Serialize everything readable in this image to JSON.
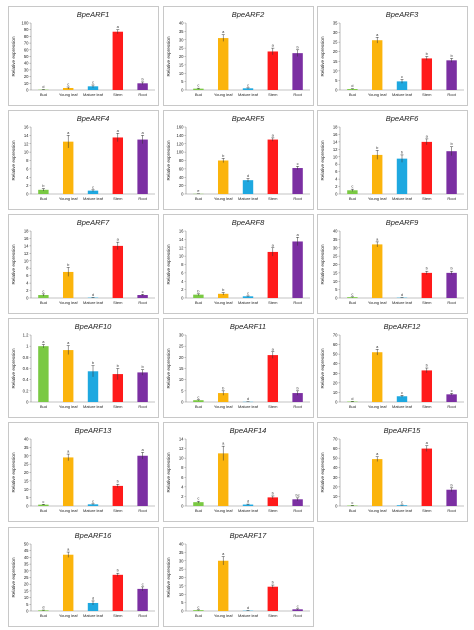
{
  "figure": {
    "categories": [
      "Bud",
      "Young leaf",
      "Mature leaf",
      "Stem",
      "Root"
    ],
    "colors": [
      "#7ac943",
      "#fbb40c",
      "#1ea8e0",
      "#ff1a1a",
      "#7b2fa2"
    ],
    "ylabel": "Relative expression"
  },
  "chart_data": [
    {
      "type": "bar",
      "title": "BpeARF1",
      "categories": [
        "Bud",
        "Young leaf",
        "Mature leaf",
        "Stem",
        "Root"
      ],
      "values": [
        0.5,
        3,
        5.5,
        87,
        10
      ],
      "errors": [
        0.3,
        1.5,
        2,
        3,
        2
      ],
      "sig": [
        "d",
        "c",
        "c",
        "a",
        "b"
      ],
      "ylabel": "Relative expression",
      "ylim": [
        0,
        100
      ],
      "yticks": [
        0,
        10,
        20,
        30,
        40,
        50,
        60,
        70,
        80,
        90,
        100
      ]
    },
    {
      "type": "bar",
      "title": "BpeARF2",
      "categories": [
        "Bud",
        "Young leaf",
        "Mature leaf",
        "Stem",
        "Root"
      ],
      "values": [
        0.8,
        31,
        1,
        23,
        22
      ],
      "errors": [
        0.3,
        2,
        0.3,
        2,
        2
      ],
      "sig": [
        "c",
        "a",
        "c",
        "a",
        "b"
      ],
      "ylabel": "Relative expression",
      "ylim": [
        0,
        40
      ],
      "yticks": [
        0,
        5,
        10,
        15,
        20,
        25,
        30,
        35,
        40
      ]
    },
    {
      "type": "bar",
      "title": "BpeARF3",
      "categories": [
        "Bud",
        "Young leaf",
        "Mature leaf",
        "Stem",
        "Root"
      ],
      "values": [
        0.5,
        26,
        4.5,
        16.5,
        15.5
      ],
      "errors": [
        0.2,
        1.5,
        1,
        1,
        1
      ],
      "sig": [
        "d",
        "a",
        "c",
        "b",
        "b"
      ],
      "ylabel": "Relative expression",
      "ylim": [
        0,
        35
      ],
      "yticks": [
        0,
        5,
        10,
        15,
        20,
        25,
        30,
        35
      ]
    },
    {
      "type": "bar",
      "title": "BpeARF4",
      "categories": [
        "Bud",
        "Young leaf",
        "Mature leaf",
        "Stem",
        "Root"
      ],
      "values": [
        1,
        12.5,
        0.8,
        13.5,
        13
      ],
      "errors": [
        0.3,
        1.5,
        0.2,
        1,
        1
      ],
      "sig": [
        "b",
        "a",
        "c",
        "a",
        "a"
      ],
      "ylabel": "Relative expression",
      "ylim": [
        0,
        16
      ],
      "yticks": [
        0,
        2,
        4,
        6,
        8,
        10,
        12,
        14,
        16
      ]
    },
    {
      "type": "bar",
      "title": "BpeARF5",
      "categories": [
        "Bud",
        "Young leaf",
        "Mature leaf",
        "Stem",
        "Root"
      ],
      "values": [
        0.5,
        80,
        33,
        130,
        62
      ],
      "errors": [
        0.2,
        5,
        4,
        4,
        4
      ],
      "sig": [
        "e",
        "b",
        "d",
        "a",
        "c"
      ],
      "ylabel": "Relative expression",
      "ylim": [
        0,
        160
      ],
      "yticks": [
        0,
        20,
        40,
        60,
        80,
        100,
        120,
        140,
        160
      ]
    },
    {
      "type": "bar",
      "title": "BpeARF6",
      "categories": [
        "Bud",
        "Young leaf",
        "Mature leaf",
        "Stem",
        "Root"
      ],
      "values": [
        1,
        10.5,
        9.5,
        14,
        11.5
      ],
      "errors": [
        0.3,
        1.2,
        1,
        0.8,
        1.2
      ],
      "sig": [
        "c",
        "b",
        "b",
        "a",
        "b"
      ],
      "ylabel": "Relative expression",
      "ylim": [
        0,
        18
      ],
      "yticks": [
        0,
        2,
        4,
        6,
        8,
        10,
        12,
        14,
        16,
        18
      ]
    },
    {
      "type": "bar",
      "title": "BpeARF7",
      "categories": [
        "Bud",
        "Young leaf",
        "Mature leaf",
        "Stem",
        "Root"
      ],
      "values": [
        0.8,
        7,
        0.1,
        14,
        0.8
      ],
      "errors": [
        0.3,
        1.2,
        0.05,
        1,
        0.2
      ],
      "sig": [
        "c",
        "b",
        "d",
        "a",
        "c"
      ],
      "ylabel": "Relative expression",
      "ylim": [
        0,
        18
      ],
      "yticks": [
        0,
        2,
        4,
        6,
        8,
        10,
        12,
        14,
        16,
        18
      ]
    },
    {
      "type": "bar",
      "title": "BpeARF8",
      "categories": [
        "Bud",
        "Young leaf",
        "Mature leaf",
        "Stem",
        "Root"
      ],
      "values": [
        0.8,
        1,
        0.4,
        11,
        13.5
      ],
      "errors": [
        0.2,
        0.3,
        0.1,
        1,
        1
      ],
      "sig": [
        "b",
        "b",
        "c",
        "a",
        "a"
      ],
      "ylabel": "Relative expression",
      "ylim": [
        0,
        16
      ],
      "yticks": [
        0,
        2,
        4,
        6,
        8,
        10,
        12,
        14,
        16
      ]
    },
    {
      "type": "bar",
      "title": "BpeARF9",
      "categories": [
        "Bud",
        "Young leaf",
        "Mature leaf",
        "Stem",
        "Root"
      ],
      "values": [
        0.5,
        32,
        0.2,
        15,
        15
      ],
      "errors": [
        0.2,
        1.5,
        0.1,
        1,
        1
      ],
      "sig": [
        "c",
        "a",
        "d",
        "b",
        "b"
      ],
      "ylabel": "Relative expression",
      "ylim": [
        0,
        40
      ],
      "yticks": [
        0,
        5,
        10,
        15,
        20,
        25,
        30,
        35,
        40
      ]
    },
    {
      "type": "bar",
      "title": "BpeARF10",
      "categories": [
        "Bud",
        "Young leaf",
        "Mature leaf",
        "Stem",
        "Root"
      ],
      "values": [
        1,
        0.93,
        0.55,
        0.5,
        0.53
      ],
      "errors": [
        0.03,
        0.08,
        0.1,
        0.1,
        0.05
      ],
      "sig": [
        "a",
        "a",
        "b",
        "b",
        "b"
      ],
      "ylabel": "Relative expression",
      "ylim": [
        0,
        1.2
      ],
      "yticks": [
        0,
        0.2,
        0.4,
        0.6,
        0.8,
        1,
        1.2
      ]
    },
    {
      "type": "bar",
      "title": "BpeARF11",
      "categories": [
        "Bud",
        "Young leaf",
        "Mature leaf",
        "Stem",
        "Root"
      ],
      "values": [
        0.8,
        4,
        0.1,
        21,
        4
      ],
      "errors": [
        0.2,
        1,
        0.05,
        1.5,
        1
      ],
      "sig": [
        "c",
        "b",
        "d",
        "a",
        "b"
      ],
      "ylabel": "Relative expression",
      "ylim": [
        0,
        30
      ],
      "yticks": [
        0,
        5,
        10,
        15,
        20,
        25,
        30
      ]
    },
    {
      "type": "bar",
      "title": "BpeARF12",
      "categories": [
        "Bud",
        "Young leaf",
        "Mature leaf",
        "Stem",
        "Root"
      ],
      "values": [
        0.5,
        52,
        6,
        33,
        8
      ],
      "errors": [
        0.2,
        3,
        1,
        2.5,
        1
      ],
      "sig": [
        "d",
        "a",
        "c",
        "b",
        "c"
      ],
      "ylabel": "Relative expression",
      "ylim": [
        0,
        70
      ],
      "yticks": [
        0,
        10,
        20,
        30,
        40,
        50,
        60,
        70
      ]
    },
    {
      "type": "bar",
      "title": "BpeARF13",
      "categories": [
        "Bud",
        "Young leaf",
        "Mature leaf",
        "Stem",
        "Root"
      ],
      "values": [
        0.8,
        29,
        1,
        12,
        30
      ],
      "errors": [
        0.2,
        2,
        0.3,
        1,
        2
      ],
      "sig": [
        "c",
        "a",
        "c",
        "b",
        "a"
      ],
      "ylabel": "Relative expression",
      "ylim": [
        0,
        40
      ],
      "yticks": [
        0,
        5,
        10,
        15,
        20,
        25,
        30,
        35,
        40
      ]
    },
    {
      "type": "bar",
      "title": "BpeARF14",
      "categories": [
        "Bud",
        "Young leaf",
        "Mature leaf",
        "Stem",
        "Root"
      ],
      "values": [
        0.8,
        11,
        0.3,
        1.8,
        1.4
      ],
      "errors": [
        0.2,
        1.5,
        0.1,
        0.3,
        0.3
      ],
      "sig": [
        "c",
        "a",
        "d",
        "b",
        "bc"
      ],
      "ylabel": "Relative expression",
      "ylim": [
        0,
        14
      ],
      "yticks": [
        0,
        2,
        4,
        6,
        8,
        10,
        12,
        14
      ]
    },
    {
      "type": "bar",
      "title": "BpeARF15",
      "categories": [
        "Bud",
        "Young leaf",
        "Mature leaf",
        "Stem",
        "Root"
      ],
      "values": [
        0.5,
        49,
        0.8,
        60,
        17
      ],
      "errors": [
        0.2,
        2.5,
        0.3,
        3,
        2
      ],
      "sig": [
        "c",
        "a",
        "c",
        "a",
        "b"
      ],
      "ylabel": "Relative expression",
      "ylim": [
        0,
        70
      ],
      "yticks": [
        0,
        10,
        20,
        30,
        40,
        50,
        60,
        70
      ]
    },
    {
      "type": "bar",
      "title": "BpeARF16",
      "categories": [
        "Bud",
        "Young leaf",
        "Mature leaf",
        "Stem",
        "Root"
      ],
      "values": [
        0.5,
        42,
        6,
        27,
        16.5
      ],
      "errors": [
        0.2,
        2,
        1.5,
        1.2,
        1.5
      ],
      "sig": [
        "d",
        "a",
        "d",
        "b",
        "c"
      ],
      "ylabel": "Relative expression",
      "ylim": [
        0,
        50
      ],
      "yticks": [
        0,
        5,
        10,
        15,
        20,
        25,
        30,
        35,
        40,
        45,
        50
      ]
    },
    {
      "type": "bar",
      "title": "BpeARF17",
      "categories": [
        "Bud",
        "Young leaf",
        "Mature leaf",
        "Stem",
        "Root"
      ],
      "values": [
        0.5,
        30,
        0.2,
        14.5,
        1
      ],
      "errors": [
        0.2,
        2.5,
        0.1,
        1,
        0.3
      ],
      "sig": [
        "c",
        "a",
        "d",
        "b",
        "c"
      ],
      "ylabel": "Relative expression",
      "ylim": [
        0,
        40
      ],
      "yticks": [
        0,
        5,
        10,
        15,
        20,
        25,
        30,
        35,
        40
      ]
    }
  ]
}
